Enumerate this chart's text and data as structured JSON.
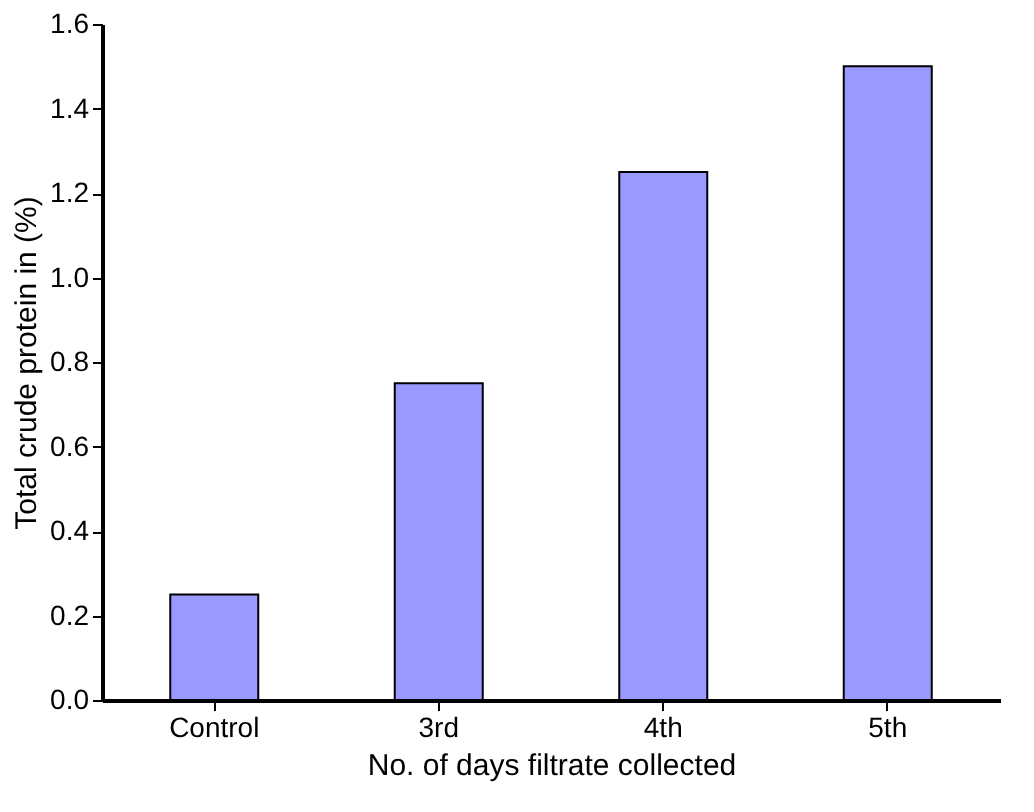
{
  "chart_data": {
    "type": "bar",
    "xlabel": "No. of days filtrate collected",
    "ylabel": "Total crude protein in (%)",
    "categories": [
      "Control",
      "3rd",
      "4th",
      "5th"
    ],
    "values": [
      0.25,
      0.75,
      1.25,
      1.5
    ],
    "color": "#9999ff",
    "ylim": [
      0,
      1.6
    ],
    "yticks": [
      {
        "value": 0,
        "label": "0.0"
      },
      {
        "value": 0.2,
        "label": "0.2"
      },
      {
        "value": 0.4,
        "label": "0.4"
      },
      {
        "value": 0.6,
        "label": "0.6"
      },
      {
        "value": 0.8,
        "label": "0.8"
      },
      {
        "value": 1.0,
        "label": "1.0"
      },
      {
        "value": 1.2,
        "label": "1.2"
      },
      {
        "value": 1.4,
        "label": "1.4"
      },
      {
        "value": 1.6,
        "label": "1.6"
      }
    ],
    "grid": false
  }
}
